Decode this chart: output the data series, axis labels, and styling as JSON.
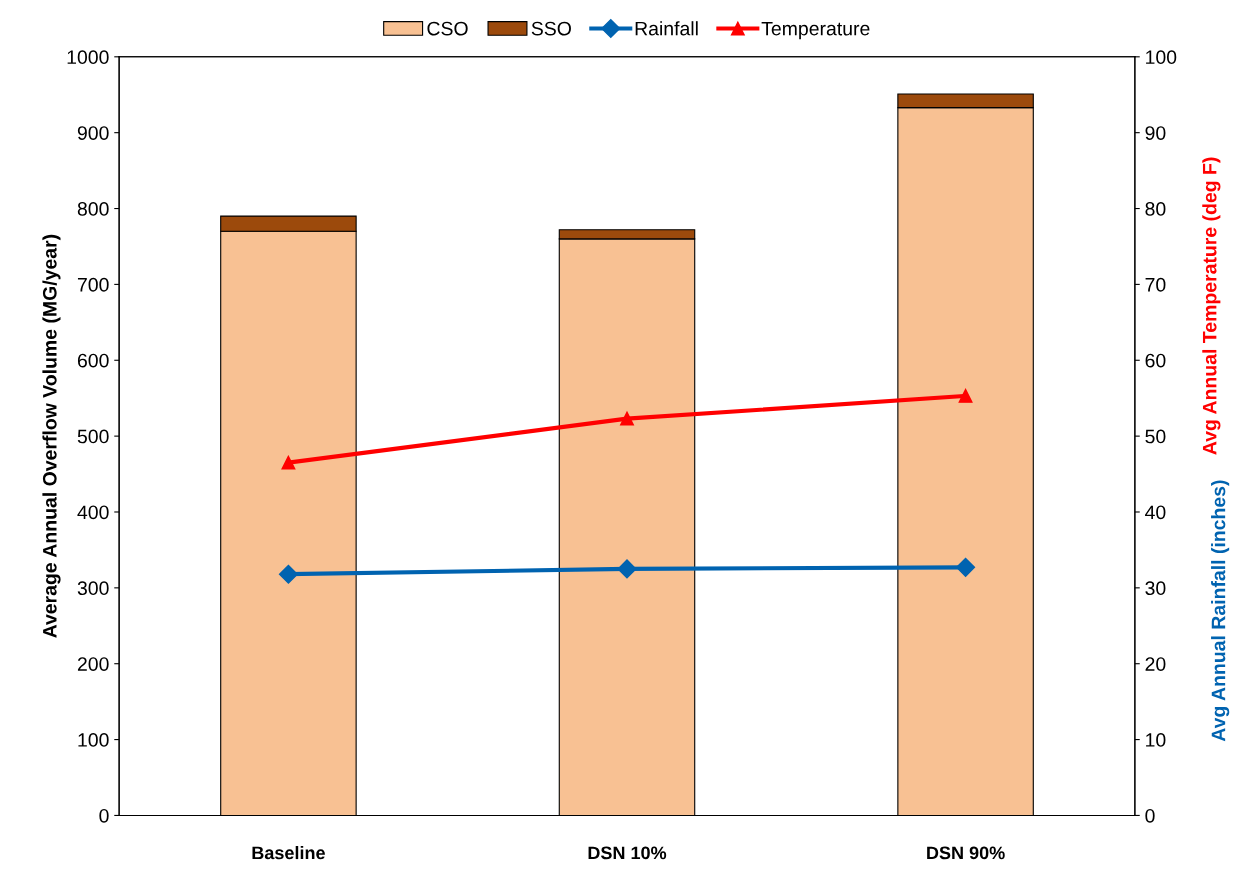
{
  "chart_data": {
    "type": "bar",
    "stacked": true,
    "categories": [
      "Baseline",
      "DSN 10%",
      "DSN 90%"
    ],
    "ylabel": "Average Annual Overflow Volume (MG/year)",
    "y2label": "Avg Annual Rainfall (inches)",
    "annotations": [
      "Avg Annual Temperature (deg F)"
    ],
    "ylim": [
      0,
      1000
    ],
    "yticks": [
      0,
      100,
      200,
      300,
      400,
      500,
      600,
      700,
      800,
      900,
      1000
    ],
    "y2lim": [
      0,
      100
    ],
    "y2ticks": [
      0,
      10,
      20,
      30,
      40,
      50,
      60,
      70,
      80,
      90,
      100
    ],
    "legend": "top",
    "grid": false,
    "series": [
      {
        "name": "CSO",
        "color": "#f8c193",
        "values": [
          770,
          760,
          933
        ]
      },
      {
        "name": "SSO",
        "color": "#9c4a0c",
        "values": [
          20,
          12,
          18
        ]
      },
      {
        "name": "Rainfall",
        "type": "line",
        "axis": "y2",
        "marker": "diamond",
        "color": "#0063b0",
        "values": [
          31.8,
          32.5,
          32.7
        ]
      },
      {
        "name": "Temperature",
        "type": "line",
        "axis": "y2",
        "marker": "triangle",
        "color": "#ff0000",
        "values": [
          46.5,
          52.3,
          55.3
        ]
      }
    ]
  }
}
